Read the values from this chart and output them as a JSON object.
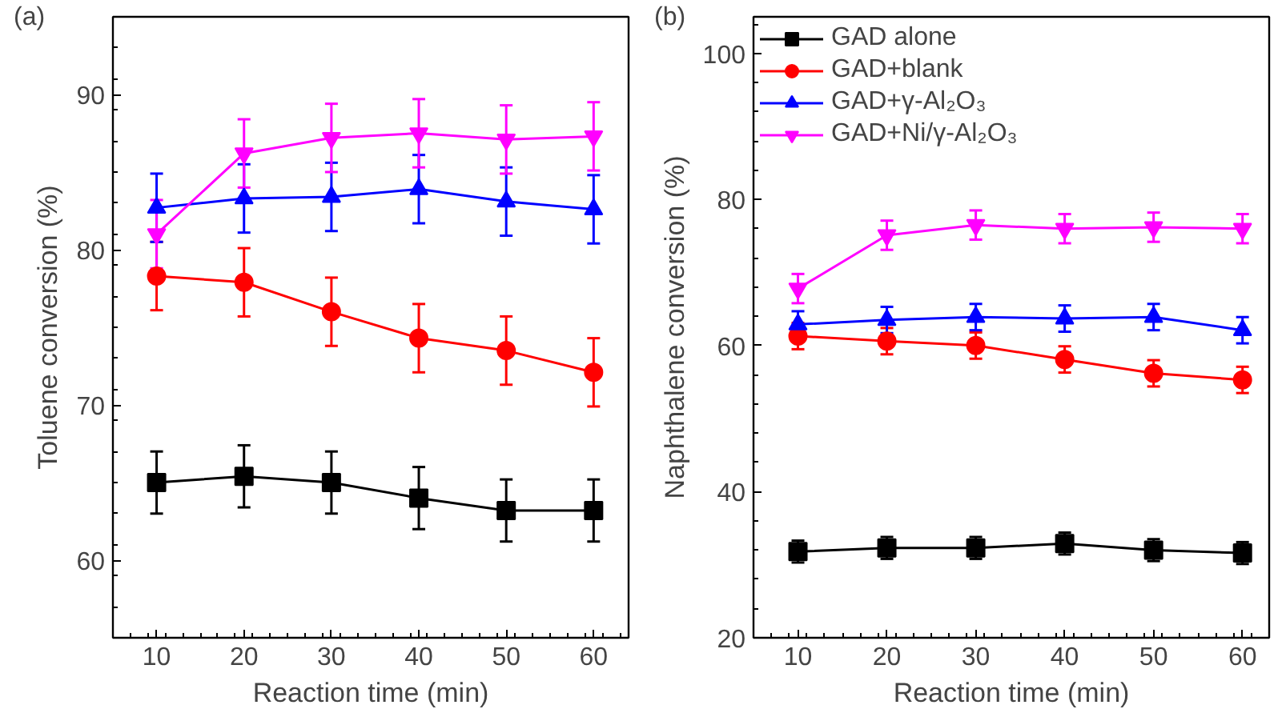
{
  "chart_data": [
    {
      "type": "line",
      "title": "(a)",
      "xlabel": "Reaction time (min)",
      "ylabel": "Toluene conversion (%)",
      "x": [
        10,
        20,
        30,
        40,
        50,
        60
      ],
      "xlim": [
        5,
        64
      ],
      "xticks": [
        10,
        20,
        30,
        40,
        50,
        60
      ],
      "ylim": [
        55,
        95
      ],
      "yticks": [
        60,
        70,
        80,
        90
      ],
      "legend": false,
      "grid": false,
      "series": [
        {
          "color": "#000000",
          "marker": "square",
          "values": [
            65.0,
            65.4,
            65.0,
            64.0,
            63.2,
            63.2
          ],
          "errors": [
            2,
            2,
            2,
            2,
            2,
            2
          ]
        },
        {
          "color": "#ff0000",
          "marker": "circle",
          "values": [
            78.3,
            77.9,
            76.0,
            74.3,
            73.5,
            72.1
          ],
          "errors": [
            2.2,
            2.2,
            2.2,
            2.2,
            2.2,
            2.2
          ]
        },
        {
          "color": "#0000ff",
          "marker": "triangle",
          "values": [
            82.7,
            83.3,
            83.4,
            83.9,
            83.1,
            82.6
          ],
          "errors": [
            2.2,
            2.2,
            2.2,
            2.2,
            2.2,
            2.2
          ]
        },
        {
          "color": "#ff00ff",
          "marker": "triangle",
          "values": [
            81.0,
            86.2,
            87.2,
            87.5,
            87.1,
            87.3
          ],
          "errors": [
            2.2,
            2.2,
            2.2,
            2.2,
            2.2,
            2.2
          ]
        }
      ]
    },
    {
      "type": "line",
      "title": "(b)",
      "xlabel": "Reaction time (min)",
      "ylabel": "Naphthalene conversion (%)",
      "x": [
        10,
        20,
        30,
        40,
        50,
        60
      ],
      "xlim": [
        5,
        63
      ],
      "xticks": [
        10,
        20,
        30,
        40,
        50,
        60
      ],
      "ylim": [
        20,
        105
      ],
      "yticks": [
        20,
        40,
        60,
        80,
        100
      ],
      "legend": "top left",
      "grid": false,
      "series": [
        {
          "name": "GAD alone",
          "color": "#000000",
          "marker": "square",
          "values": [
            31.8,
            32.3,
            32.3,
            32.9,
            32.0,
            31.6
          ],
          "errors": [
            1.5,
            1.5,
            1.5,
            1.5,
            1.5,
            1.5
          ]
        },
        {
          "name": "GAD+blank",
          "color": "#ff0000",
          "marker": "circle",
          "values": [
            61.3,
            60.6,
            60.0,
            58.1,
            56.2,
            55.3
          ],
          "errors": [
            1.8,
            1.8,
            1.8,
            1.8,
            1.8,
            1.8
          ]
        },
        {
          "name": "GAD+γ-Al₂O₃",
          "color": "#0000ff",
          "marker": "triangle",
          "values": [
            62.9,
            63.5,
            63.9,
            63.7,
            63.9,
            62.1
          ],
          "errors": [
            1.8,
            1.8,
            1.8,
            1.8,
            1.8,
            1.8
          ]
        },
        {
          "name": "GAD+Ni/γ-Al₂O₃",
          "color": "#ff00ff",
          "marker": "triangle",
          "values": [
            67.8,
            75.1,
            76.5,
            76.0,
            76.2,
            76.0
          ],
          "errors": [
            2,
            2,
            2,
            2,
            2,
            2
          ]
        }
      ]
    }
  ]
}
